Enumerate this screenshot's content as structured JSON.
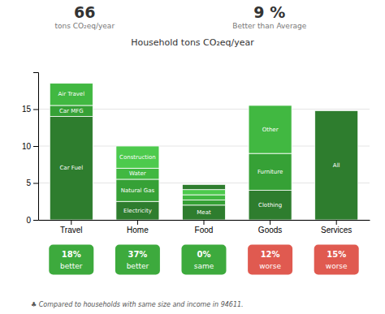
{
  "chart_data": {
    "type": "bar",
    "stacked": true,
    "title": "Household tons CO₂eq/year",
    "header": [
      {
        "value": "66",
        "label": "tons CO₂eq/year"
      },
      {
        "value": "9 %",
        "label": "Better than Average"
      }
    ],
    "categories": [
      "Travel",
      "Home",
      "Food",
      "Goods",
      "Services"
    ],
    "stacks": [
      {
        "labels": [
          "Car Fuel",
          "Car MFG",
          "Air Travel"
        ],
        "values": [
          14.0,
          1.5,
          3.0
        ],
        "colors": [
          "#2e7d2e",
          "#36a136",
          "#41b841"
        ]
      },
      {
        "labels": [
          "Electricity",
          "Natural Gas",
          "Water",
          "Construction"
        ],
        "values": [
          2.5,
          3.0,
          1.5,
          3.0
        ],
        "colors": [
          "#2e7d2e",
          "#36a136",
          "#41b841",
          "#4dca4d"
        ]
      },
      {
        "labels": [
          "Meat",
          null,
          null,
          null,
          null
        ],
        "values": [
          2.0,
          0.7,
          0.7,
          0.7,
          0.7
        ],
        "colors": [
          "#2e7d2e",
          "#36a136",
          "#41b841",
          "#4dca4d",
          "#2e7d2e"
        ]
      },
      {
        "labels": [
          "Clothing",
          "Furniture",
          "Other"
        ],
        "values": [
          4.0,
          5.0,
          6.5
        ],
        "colors": [
          "#2e7d2e",
          "#36a136",
          "#41b841"
        ]
      },
      {
        "labels": [
          "All"
        ],
        "values": [
          14.8
        ],
        "colors": [
          "#2e7d2e"
        ]
      }
    ],
    "ylim": [
      0,
      20
    ],
    "yticks": [
      0,
      5,
      10,
      15
    ],
    "grid": true,
    "badges": [
      {
        "text": "18%",
        "subtext": "better",
        "color": "#3daa3d"
      },
      {
        "text": "37%",
        "subtext": "better",
        "color": "#3daa3d"
      },
      {
        "text": "0%",
        "subtext": "same",
        "color": "#3daa3d"
      },
      {
        "text": "12%",
        "subtext": "worse",
        "color": "#e05a50"
      },
      {
        "text": "15%",
        "subtext": "worse",
        "color": "#e05a50"
      }
    ],
    "footnote": "♣ Compared to households with same size and income in 94611."
  }
}
